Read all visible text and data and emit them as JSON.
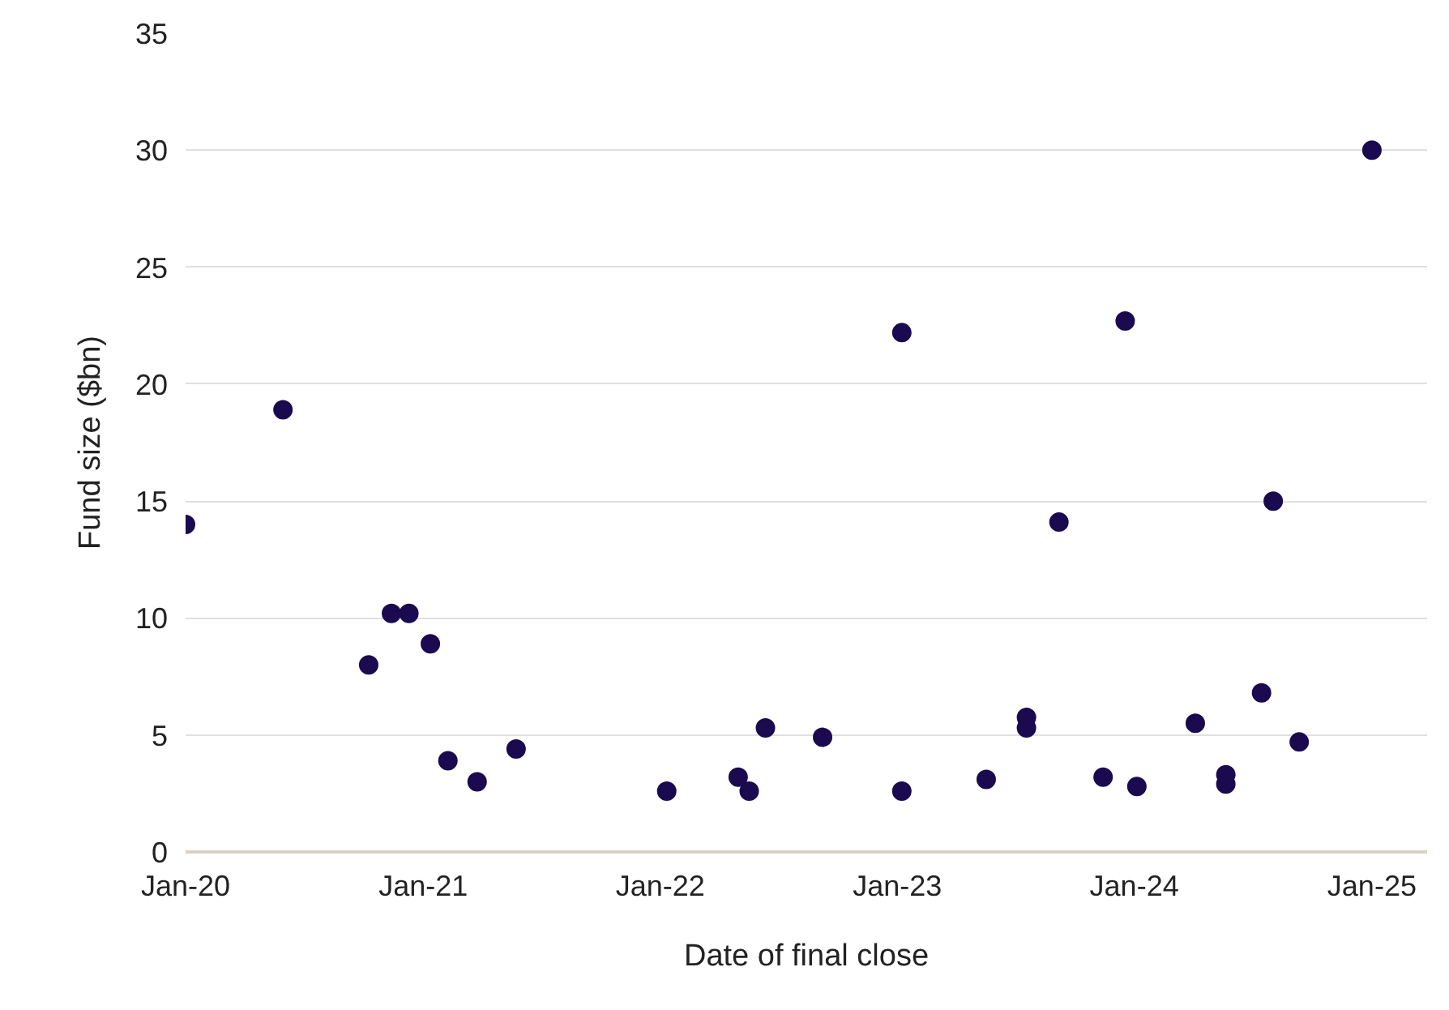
{
  "chart_data": {
    "type": "scatter",
    "xlabel": "Date of final close",
    "ylabel": "Fund size ($bn)",
    "x": [
      "2020-01-01",
      "2020-05-30",
      "2020-10-09",
      "2020-11-13",
      "2020-12-10",
      "2021-01-12",
      "2021-02-08",
      "2021-03-25",
      "2021-05-24",
      "2022-01-11",
      "2022-05-01",
      "2022-05-18",
      "2022-06-12",
      "2022-09-08",
      "2023-01-08",
      "2023-01-08",
      "2023-05-18",
      "2023-07-19",
      "2023-07-19",
      "2023-09-07",
      "2023-11-14",
      "2023-12-18",
      "2024-01-05",
      "2024-04-04",
      "2024-05-21",
      "2024-05-21",
      "2024-07-15",
      "2024-08-02",
      "2024-09-11",
      "2025-01-01"
    ],
    "series": [
      {
        "color": "#1b0a4f",
        "values": [
          14,
          18.9,
          8.0,
          10.2,
          10.2,
          8.9,
          3.9,
          3.0,
          4.4,
          2.6,
          3.2,
          2.6,
          5.3,
          4.9,
          22.2,
          2.6,
          3.1,
          5.75,
          5.3,
          14.1,
          3.2,
          22.7,
          2.8,
          5.5,
          3.3,
          2.9,
          6.8,
          15.0,
          4.7,
          30
        ]
      }
    ],
    "xlim": [
      "2020-01-01",
      "2025-03-27"
    ],
    "xticks": [
      {
        "value": "2020-01-01",
        "label": "Jan-20"
      },
      {
        "value": "2021-01-01",
        "label": "Jan-21"
      },
      {
        "value": "2022-01-01",
        "label": "Jan-22"
      },
      {
        "value": "2023-01-01",
        "label": "Jan-23"
      },
      {
        "value": "2024-01-01",
        "label": "Jan-24"
      },
      {
        "value": "2025-01-01",
        "label": "Jan-25"
      }
    ],
    "ylim": [
      0,
      35
    ],
    "yticks": [
      0,
      5,
      10,
      15,
      20,
      25,
      30,
      35
    ],
    "grid": "y",
    "marker": "circle"
  }
}
